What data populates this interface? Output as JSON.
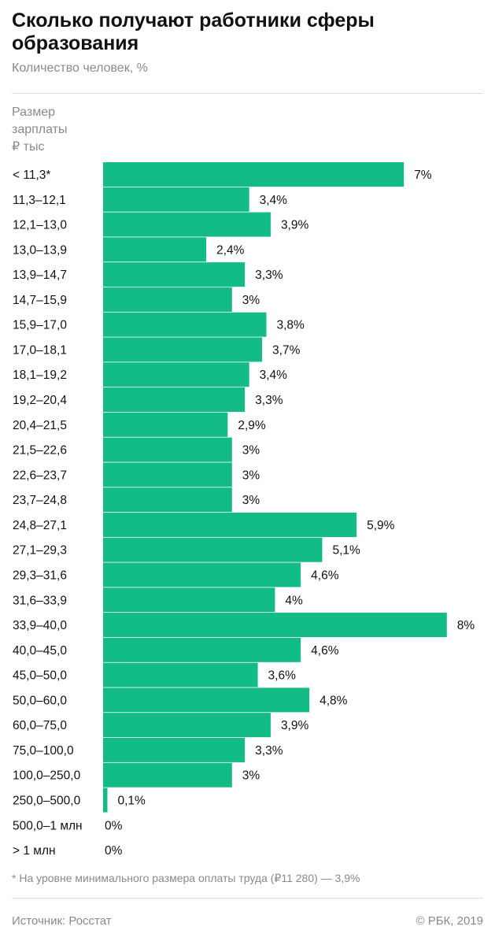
{
  "header": {
    "title": "Сколько получают работники сферы образования",
    "subtitle": "Количество человек, %"
  },
  "footer": {
    "footnote": "* На уровне минимального размера оплаты труда (₽11 280) — 3,9%",
    "source": "Источник: Росстат",
    "copyright": "© РБК, 2019"
  },
  "colors": {
    "bar": "#13bb86",
    "text": "#111111",
    "muted": "#8a8a8a"
  },
  "chart_data": {
    "type": "bar",
    "orientation": "horizontal",
    "ylabel": "Размер\nзарплаты\n₽ тыс",
    "xlabel": "",
    "xlim": [
      0,
      8
    ],
    "grid": false,
    "legend": "none",
    "categories": [
      "< 11,3*",
      "11,3–12,1",
      "12,1–13,0",
      "13,0–13,9",
      "13,9–14,7",
      "14,7–15,9",
      "15,9–17,0",
      "17,0–18,1",
      "18,1–19,2",
      "19,2–20,4",
      "20,4–21,5",
      "21,5–22,6",
      "22,6–23,7",
      "23,7–24,8",
      "24,8–27,1",
      "27,1–29,3",
      "29,3–31,6",
      "31,6–33,9",
      "33,9–40,0",
      "40,0–45,0",
      "45,0–50,0",
      "50,0–60,0",
      "60,0–75,0",
      "75,0–100,0",
      "100,0–250,0",
      "250,0–500,0",
      "500,0–1 млн",
      "> 1 млн"
    ],
    "values": [
      7,
      3.4,
      3.9,
      2.4,
      3.3,
      3,
      3.8,
      3.7,
      3.4,
      3.3,
      2.9,
      3,
      3,
      3,
      5.9,
      5.1,
      4.6,
      4,
      8,
      4.6,
      3.6,
      4.8,
      3.9,
      3.3,
      3,
      0.1,
      0,
      0
    ],
    "value_labels": [
      "7%",
      "3,4%",
      "3,9%",
      "2,4%",
      "3,3%",
      "3%",
      "3,8%",
      "3,7%",
      "3,4%",
      "3,3%",
      "2,9%",
      "3%",
      "3%",
      "3%",
      "5,9%",
      "5,1%",
      "4,6%",
      "4%",
      "8%",
      "4,6%",
      "3,6%",
      "4,8%",
      "3,9%",
      "3,3%",
      "3%",
      "0,1%",
      "0%",
      "0%"
    ]
  }
}
